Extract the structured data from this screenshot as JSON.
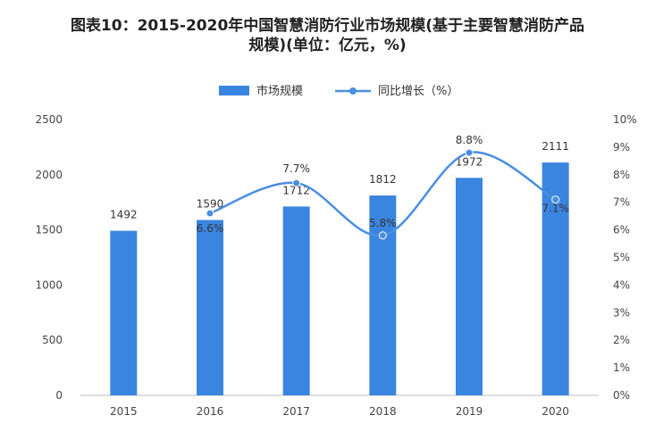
{
  "title_line1": "图表10：2015-2020年中国智慧消防行业市场规模(基于主要智慧消防产品",
  "title_line2": "规模)(单位：亿元，%)",
  "chart_data": {
    "type": "bar",
    "categories": [
      "2015",
      "2016",
      "2017",
      "2018",
      "2019",
      "2020"
    ],
    "series": [
      {
        "name": "市场规模",
        "kind": "bar",
        "axis": "left",
        "values": [
          1492,
          1590,
          1712,
          1812,
          1972,
          2111
        ],
        "color": "#3A85E0"
      },
      {
        "name": "同比增长（%）",
        "kind": "line",
        "axis": "right",
        "values": [
          null,
          6.6,
          7.7,
          5.8,
          8.8,
          7.1
        ],
        "labels": [
          "",
          "6.6%",
          "7.7%",
          "5.8%",
          "8.8%",
          "7.1%"
        ],
        "color": "#4A8FE0"
      }
    ],
    "left_axis": {
      "ylim": [
        0,
        2500
      ],
      "ticks": [
        "0",
        "500",
        "1000",
        "1500",
        "2000",
        "2500"
      ]
    },
    "right_axis": {
      "ylim": [
        0,
        10
      ],
      "ticks": [
        "0%",
        "1%",
        "2%",
        "3%",
        "4%",
        "5%",
        "6%",
        "7%",
        "8%",
        "9%",
        "10%"
      ]
    },
    "legend_position": "top-center"
  }
}
